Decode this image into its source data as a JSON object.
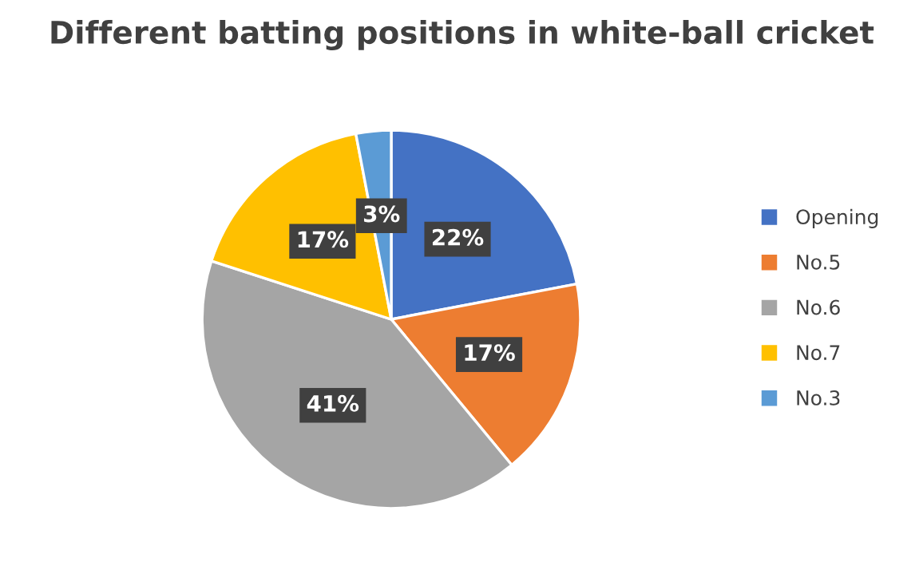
{
  "chart_data": {
    "type": "pie",
    "title": "Different batting positions in white-ball cricket",
    "categories": [
      "Opening",
      "No.5",
      "No.6",
      "No.7",
      "No.3"
    ],
    "values": [
      22,
      17,
      41,
      17,
      3
    ],
    "colors": [
      "#4472c4",
      "#ed7d31",
      "#a5a5a5",
      "#ffc000",
      "#5b9bd5"
    ],
    "value_labels": [
      "22%",
      "17%",
      "41%",
      "17%",
      "3%"
    ],
    "legend": "right"
  }
}
